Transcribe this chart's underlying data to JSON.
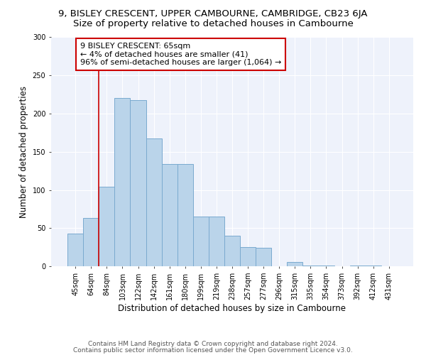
{
  "title": "9, BISLEY CRESCENT, UPPER CAMBOURNE, CAMBRIDGE, CB23 6JA",
  "subtitle": "Size of property relative to detached houses in Cambourne",
  "xlabel": "Distribution of detached houses by size in Cambourne",
  "ylabel": "Number of detached properties",
  "categories": [
    "45sqm",
    "64sqm",
    "84sqm",
    "103sqm",
    "122sqm",
    "142sqm",
    "161sqm",
    "180sqm",
    "199sqm",
    "219sqm",
    "238sqm",
    "257sqm",
    "277sqm",
    "296sqm",
    "315sqm",
    "335sqm",
    "354sqm",
    "373sqm",
    "392sqm",
    "412sqm",
    "431sqm"
  ],
  "values": [
    43,
    63,
    104,
    220,
    218,
    167,
    134,
    134,
    65,
    65,
    40,
    25,
    24,
    0,
    6,
    1,
    1,
    0,
    1,
    1,
    0
  ],
  "bar_color": "#bad4ea",
  "bar_edge_color": "#7aaacf",
  "vline_x": 1.5,
  "vline_color": "#cc0000",
  "annotation_box_text": "9 BISLEY CRESCENT: 65sqm\n← 4% of detached houses are smaller (41)\n96% of semi-detached houses are larger (1,064) →",
  "ylim": [
    0,
    300
  ],
  "yticks": [
    0,
    50,
    100,
    150,
    200,
    250,
    300
  ],
  "footer1": "Contains HM Land Registry data © Crown copyright and database right 2024.",
  "footer2": "Contains public sector information licensed under the Open Government Licence v3.0.",
  "bg_color": "#eef2fb",
  "title_fontsize": 9.5,
  "subtitle_fontsize": 9.5,
  "axis_label_fontsize": 8.5,
  "tick_fontsize": 7,
  "annotation_fontsize": 8,
  "footer_fontsize": 6.5
}
